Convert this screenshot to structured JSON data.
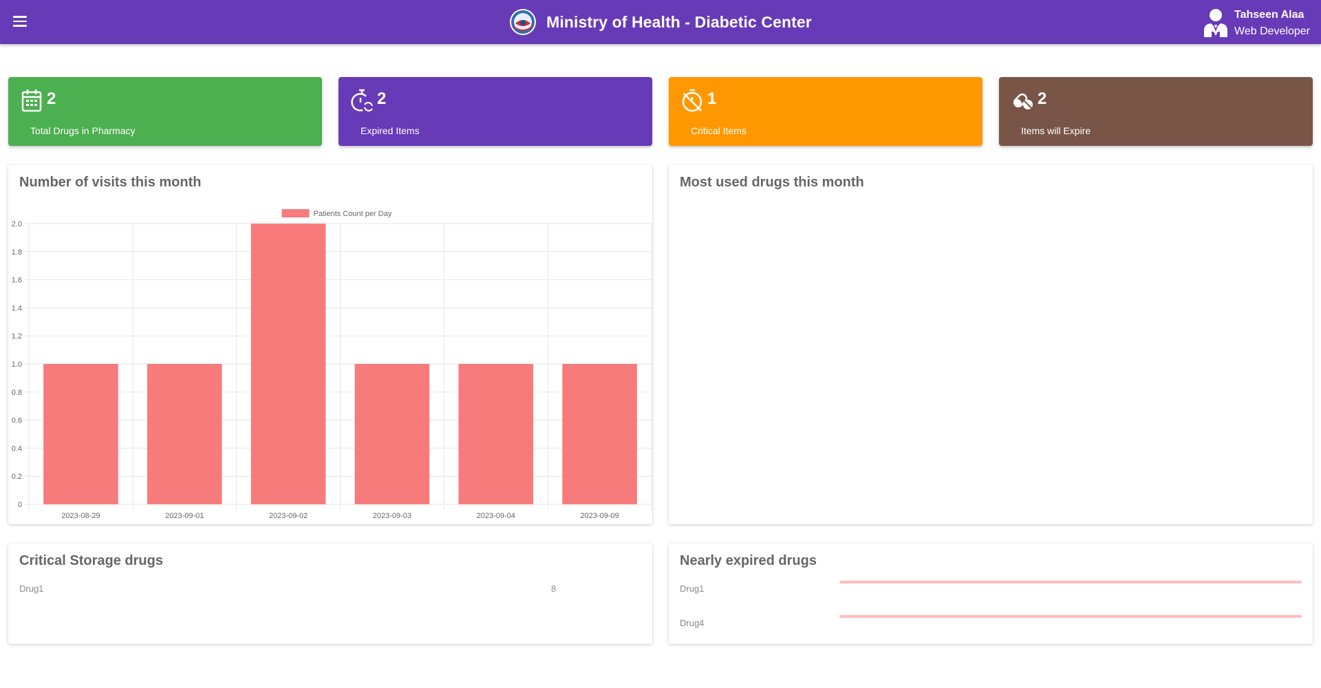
{
  "header": {
    "title": "Ministry of Health - Diabetic Center",
    "logo_icon": "ministry-logo-icon",
    "menu_icon": "menu-icon",
    "user": {
      "name": "Tahseen Alaa",
      "role": "Web Developer",
      "icon": "user-tie-icon"
    },
    "color": "#673ab7"
  },
  "stats": [
    {
      "value": "2",
      "label": "Total Drugs in Pharmacy",
      "icon": "calendar-icon",
      "color": "#4caf50"
    },
    {
      "value": "2",
      "label": "Expired Items",
      "icon": "timer-sync-icon",
      "color": "#673ab7"
    },
    {
      "value": "1",
      "label": "Critical Items",
      "icon": "timer-off-icon",
      "color": "#ff9800"
    },
    {
      "value": "2",
      "label": "Items will Expire",
      "icon": "pills-icon",
      "color": "#795548"
    }
  ],
  "visits_panel": {
    "title": "Number of visits this month"
  },
  "most_used_panel": {
    "title": "Most used drugs this month"
  },
  "critical_panel": {
    "title": "Critical Storage drugs",
    "items": [
      {
        "name": "Drug1",
        "count": "8"
      }
    ]
  },
  "nearly_expired_panel": {
    "title": "Nearly expired drugs",
    "items": [
      {
        "name": "Drug1"
      },
      {
        "name": "Drug4"
      }
    ]
  },
  "chart_data": {
    "type": "bar",
    "categories": [
      "2023-08-29",
      "2023-09-01",
      "2023-09-02",
      "2023-09-03",
      "2023-09-04",
      "2023-09-09"
    ],
    "series": [
      {
        "name": "Patients Count per Day",
        "values": [
          1,
          1,
          2,
          1,
          1,
          1
        ],
        "color": "#f77b7b"
      }
    ],
    "ylim": [
      0,
      2
    ],
    "yticks": [
      "0",
      "0.2",
      "0.4",
      "0.6",
      "0.8",
      "1.0",
      "1.2",
      "1.4",
      "1.6",
      "1.8",
      "2.0"
    ],
    "grid": true,
    "legend": "top-center",
    "xlabel": "",
    "ylabel": ""
  }
}
